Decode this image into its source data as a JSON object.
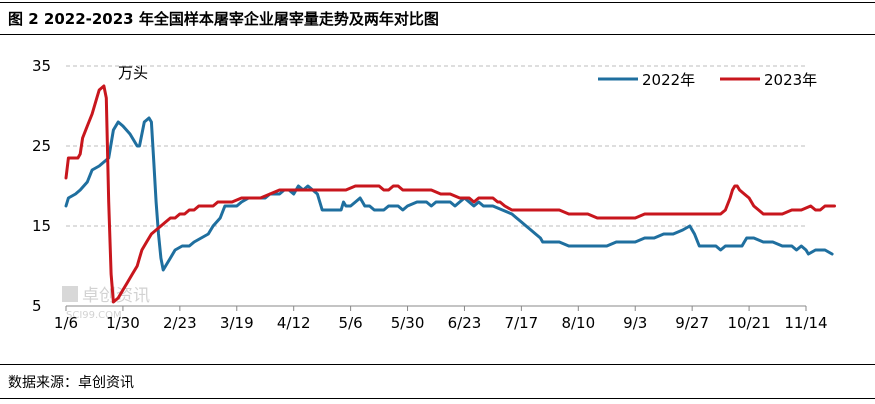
{
  "title": "图 2 2022-2023 年全国样本屠宰企业屠宰量走势及两年对比图",
  "source": "数据来源：卓创资讯",
  "watermark": "卓创资讯",
  "watermark_sub": "SCI99.COM",
  "chart_data": {
    "type": "line",
    "unit_label": "万头",
    "x_ticks": [
      "1/6",
      "1/30",
      "2/23",
      "3/19",
      "4/12",
      "5/6",
      "5/30",
      "6/23",
      "7/17",
      "8/10",
      "9/3",
      "9/27",
      "10/21",
      "11/14"
    ],
    "x_range_days": [
      0,
      312
    ],
    "y_ticks": [
      5,
      15,
      25,
      35
    ],
    "ylim": [
      5,
      35
    ],
    "grid": "horizontal",
    "legend_position": "top-right",
    "series": [
      {
        "name": "2022年",
        "color": "#1f6f9f",
        "points": [
          [
            0,
            17.5
          ],
          [
            1,
            18.5
          ],
          [
            4,
            19
          ],
          [
            6,
            19.5
          ],
          [
            9,
            20.5
          ],
          [
            11,
            22
          ],
          [
            14,
            22.5
          ],
          [
            16,
            23
          ],
          [
            18,
            23.5
          ],
          [
            20,
            27
          ],
          [
            22,
            28
          ],
          [
            24,
            27.5
          ],
          [
            27,
            26.5
          ],
          [
            30,
            25
          ],
          [
            31,
            25
          ],
          [
            33,
            28
          ],
          [
            35,
            28.5
          ],
          [
            36,
            28
          ],
          [
            37,
            23
          ],
          [
            38,
            18
          ],
          [
            39,
            14
          ],
          [
            40,
            11
          ],
          [
            41,
            9.5
          ],
          [
            42,
            10
          ],
          [
            44,
            11
          ],
          [
            46,
            12
          ],
          [
            49,
            12.5
          ],
          [
            52,
            12.5
          ],
          [
            54,
            13
          ],
          [
            57,
            13.5
          ],
          [
            60,
            14
          ],
          [
            62,
            15
          ],
          [
            65,
            16
          ],
          [
            67,
            17.5
          ],
          [
            70,
            17.5
          ],
          [
            72,
            17.5
          ],
          [
            74,
            18
          ],
          [
            77,
            18.5
          ],
          [
            79,
            18.5
          ],
          [
            82,
            18.5
          ],
          [
            84,
            18.5
          ],
          [
            86,
            19
          ],
          [
            88,
            19
          ],
          [
            90,
            19
          ],
          [
            92,
            19.5
          ],
          [
            94,
            19.5
          ],
          [
            96,
            19
          ],
          [
            98,
            20
          ],
          [
            100,
            19.5
          ],
          [
            102,
            20
          ],
          [
            104,
            19.5
          ],
          [
            106,
            19
          ],
          [
            107,
            18
          ],
          [
            108,
            17
          ],
          [
            112,
            17
          ],
          [
            116,
            17
          ],
          [
            117,
            18
          ],
          [
            118,
            17.5
          ],
          [
            120,
            17.5
          ],
          [
            122,
            18
          ],
          [
            124,
            18.5
          ],
          [
            125,
            18
          ],
          [
            126,
            17.5
          ],
          [
            128,
            17.5
          ],
          [
            130,
            17
          ],
          [
            134,
            17
          ],
          [
            136,
            17.5
          ],
          [
            138,
            17.5
          ],
          [
            140,
            17.5
          ],
          [
            142,
            17
          ],
          [
            144,
            17.5
          ],
          [
            148,
            18
          ],
          [
            152,
            18
          ],
          [
            154,
            17.5
          ],
          [
            156,
            18
          ],
          [
            158,
            18
          ],
          [
            160,
            18
          ],
          [
            162,
            18
          ],
          [
            164,
            17.5
          ],
          [
            166,
            18
          ],
          [
            168,
            18.5
          ],
          [
            170,
            18
          ],
          [
            172,
            17.5
          ],
          [
            174,
            18
          ],
          [
            176,
            17.5
          ],
          [
            180,
            17.5
          ],
          [
            184,
            17
          ],
          [
            188,
            16.5
          ],
          [
            190,
            16
          ],
          [
            192,
            15.5
          ],
          [
            194,
            15
          ],
          [
            196,
            14.5
          ],
          [
            198,
            14
          ],
          [
            200,
            13.5
          ],
          [
            201,
            13
          ],
          [
            204,
            13
          ],
          [
            208,
            13
          ],
          [
            212,
            12.5
          ],
          [
            216,
            12.5
          ],
          [
            220,
            12.5
          ],
          [
            224,
            12.5
          ],
          [
            228,
            12.5
          ],
          [
            232,
            13
          ],
          [
            236,
            13
          ],
          [
            240,
            13
          ],
          [
            244,
            13.5
          ],
          [
            248,
            13.5
          ],
          [
            252,
            14
          ],
          [
            256,
            14
          ],
          [
            260,
            14.5
          ],
          [
            263,
            15
          ],
          [
            265,
            14
          ],
          [
            267,
            12.5
          ],
          [
            270,
            12.5
          ],
          [
            274,
            12.5
          ],
          [
            276,
            12
          ],
          [
            278,
            12.5
          ],
          [
            282,
            12.5
          ],
          [
            285,
            12.5
          ],
          [
            286,
            13
          ],
          [
            287,
            13.5
          ],
          [
            290,
            13.5
          ],
          [
            294,
            13
          ],
          [
            298,
            13
          ],
          [
            302,
            12.5
          ],
          [
            306,
            12.5
          ],
          [
            308,
            12
          ],
          [
            310,
            12.5
          ],
          [
            312,
            12
          ],
          [
            313,
            11.5
          ],
          [
            316,
            12
          ],
          [
            320,
            12
          ],
          [
            323,
            11.5
          ]
        ]
      },
      {
        "name": "2023年",
        "color": "#c8161d",
        "points": [
          [
            0,
            21
          ],
          [
            1,
            23.5
          ],
          [
            3,
            23.5
          ],
          [
            5,
            23.5
          ],
          [
            6,
            24
          ],
          [
            7,
            26
          ],
          [
            9,
            27.5
          ],
          [
            11,
            29
          ],
          [
            13,
            31
          ],
          [
            14,
            32
          ],
          [
            16,
            32.5
          ],
          [
            17,
            31
          ],
          [
            18,
            18
          ],
          [
            19,
            9
          ],
          [
            20,
            5.5
          ],
          [
            22,
            6
          ],
          [
            24,
            7
          ],
          [
            26,
            8
          ],
          [
            28,
            9
          ],
          [
            30,
            10
          ],
          [
            31,
            11
          ],
          [
            32,
            12
          ],
          [
            34,
            13
          ],
          [
            36,
            14
          ],
          [
            38,
            14.5
          ],
          [
            40,
            15
          ],
          [
            42,
            15.5
          ],
          [
            44,
            16
          ],
          [
            46,
            16
          ],
          [
            48,
            16.5
          ],
          [
            50,
            16.5
          ],
          [
            52,
            17
          ],
          [
            54,
            17
          ],
          [
            56,
            17.5
          ],
          [
            58,
            17.5
          ],
          [
            60,
            17.5
          ],
          [
            62,
            17.5
          ],
          [
            64,
            18
          ],
          [
            66,
            18
          ],
          [
            70,
            18
          ],
          [
            74,
            18.5
          ],
          [
            78,
            18.5
          ],
          [
            82,
            18.5
          ],
          [
            86,
            19
          ],
          [
            90,
            19.5
          ],
          [
            94,
            19.5
          ],
          [
            98,
            19.5
          ],
          [
            102,
            19.5
          ],
          [
            106,
            19.5
          ],
          [
            110,
            19.5
          ],
          [
            114,
            19.5
          ],
          [
            118,
            19.5
          ],
          [
            122,
            20
          ],
          [
            126,
            20
          ],
          [
            128,
            20
          ],
          [
            130,
            20
          ],
          [
            132,
            20
          ],
          [
            134,
            19.5
          ],
          [
            136,
            19.5
          ],
          [
            138,
            20
          ],
          [
            140,
            20
          ],
          [
            142,
            19.5
          ],
          [
            146,
            19.5
          ],
          [
            150,
            19.5
          ],
          [
            154,
            19.5
          ],
          [
            158,
            19
          ],
          [
            162,
            19
          ],
          [
            166,
            18.5
          ],
          [
            170,
            18.5
          ],
          [
            172,
            18
          ],
          [
            174,
            18.5
          ],
          [
            176,
            18.5
          ],
          [
            178,
            18.5
          ],
          [
            180,
            18.5
          ],
          [
            182,
            18
          ],
          [
            183,
            18
          ],
          [
            185,
            17.5
          ],
          [
            188,
            17
          ],
          [
            192,
            17
          ],
          [
            196,
            17
          ],
          [
            200,
            17
          ],
          [
            204,
            17
          ],
          [
            208,
            17
          ],
          [
            212,
            16.5
          ],
          [
            216,
            16.5
          ],
          [
            220,
            16.5
          ],
          [
            224,
            16
          ],
          [
            228,
            16
          ],
          [
            232,
            16
          ],
          [
            236,
            16
          ],
          [
            240,
            16
          ],
          [
            244,
            16.5
          ],
          [
            248,
            16.5
          ],
          [
            252,
            16.5
          ],
          [
            256,
            16.5
          ],
          [
            260,
            16.5
          ],
          [
            264,
            16.5
          ],
          [
            268,
            16.5
          ],
          [
            272,
            16.5
          ],
          [
            276,
            16.5
          ],
          [
            278,
            17
          ],
          [
            280,
            18.5
          ],
          [
            281,
            19.5
          ],
          [
            282,
            20
          ],
          [
            283,
            20
          ],
          [
            284,
            19.5
          ],
          [
            286,
            19
          ],
          [
            288,
            18.5
          ],
          [
            290,
            17.5
          ],
          [
            292,
            17
          ],
          [
            294,
            16.5
          ],
          [
            298,
            16.5
          ],
          [
            302,
            16.5
          ],
          [
            306,
            17
          ],
          [
            310,
            17
          ],
          [
            314,
            17.5
          ],
          [
            316,
            17
          ],
          [
            318,
            17
          ],
          [
            320,
            17.5
          ],
          [
            322,
            17.5
          ],
          [
            324,
            17.5
          ]
        ]
      }
    ]
  }
}
